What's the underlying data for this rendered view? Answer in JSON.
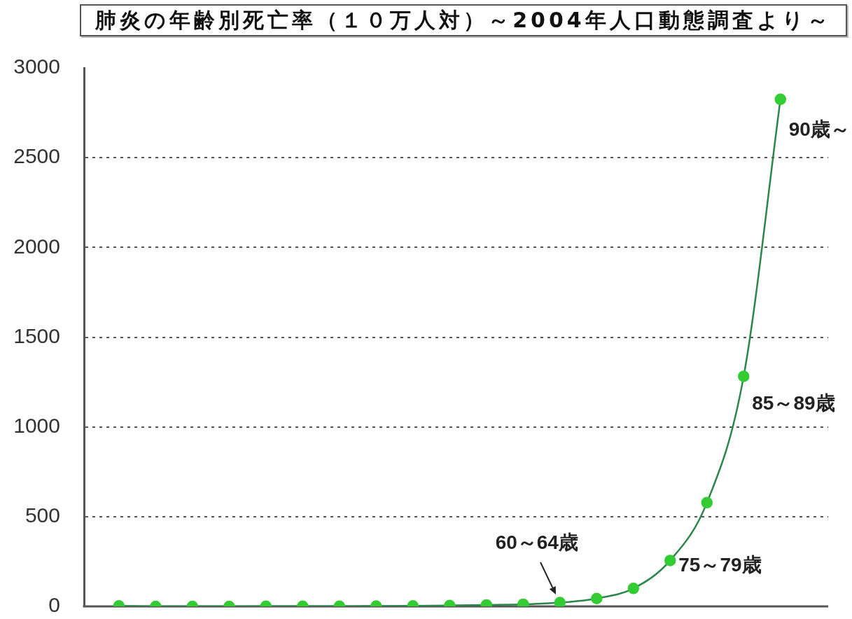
{
  "chart_data": {
    "type": "line",
    "title": "肺炎の年齢別死亡率（１０万人対）～2004年人口動態調査より～",
    "categories": [
      null,
      null,
      null,
      null,
      null,
      null,
      null,
      null,
      null,
      null,
      null,
      null,
      null,
      null,
      null,
      null,
      null,
      null,
      null
    ],
    "values": [
      3,
      0,
      0,
      0,
      1,
      1,
      1,
      2,
      3,
      5,
      8,
      12,
      21,
      44,
      100,
      256,
      578,
      1282,
      2825
    ],
    "color": "#33cc33",
    "marker": "circle",
    "ylim": [
      0,
      3000
    ],
    "yticks": [
      0,
      500,
      1000,
      1500,
      2000,
      2500,
      3000
    ],
    "grid": "y",
    "tick_labels": "y",
    "annotations": [
      "60～64歳",
      "75～79歳",
      "85～89歳",
      "90歳～"
    ]
  }
}
